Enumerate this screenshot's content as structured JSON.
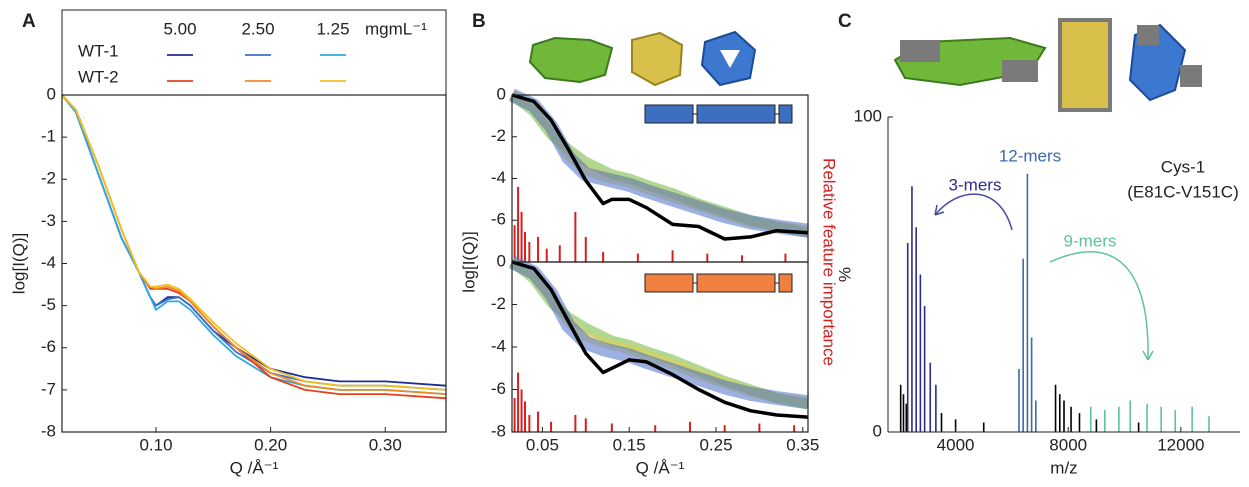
{
  "panel_labels": [
    "A",
    "B",
    "C"
  ],
  "chart_data": [
    {
      "type": "line",
      "xlabel": "Q /Å⁻¹",
      "ylabel": "log[I(Q)]",
      "legend_unit": "mgmL⁻¹",
      "x": [
        0.018,
        0.03,
        0.05,
        0.07,
        0.085,
        0.095,
        0.1,
        0.11,
        0.12,
        0.13,
        0.15,
        0.17,
        0.2,
        0.23,
        0.26,
        0.3,
        0.353
      ],
      "xlim": [
        0.018,
        0.353
      ],
      "xticks": [
        {
          "value": 0.1,
          "label": "0.10"
        },
        {
          "value": 0.2,
          "label": "0.20"
        },
        {
          "value": 0.3,
          "label": "0.30"
        }
      ],
      "ylim": [
        -8,
        0
      ],
      "yticks": [
        0,
        -1,
        -2,
        -3,
        -4,
        -5,
        -6,
        -7,
        -8
      ],
      "series": [
        {
          "group": "WT-1",
          "name": "5.00",
          "color": "#1f2f8f",
          "values": [
            0,
            -0.4,
            -1.9,
            -3.4,
            -4.2,
            -4.8,
            -5.0,
            -4.8,
            -4.8,
            -5.0,
            -5.6,
            -6.0,
            -6.5,
            -6.7,
            -6.8,
            -6.8,
            -6.9
          ]
        },
        {
          "group": "WT-1",
          "name": "2.50",
          "color": "#3f6fd0",
          "values": [
            0,
            -0.4,
            -1.9,
            -3.4,
            -4.2,
            -4.8,
            -5.0,
            -4.85,
            -4.8,
            -5.0,
            -5.6,
            -6.1,
            -6.6,
            -6.8,
            -6.9,
            -6.9,
            -7.0
          ]
        },
        {
          "group": "WT-1",
          "name": "1.25",
          "color": "#30a8e0",
          "values": [
            0,
            -0.4,
            -1.9,
            -3.4,
            -4.2,
            -4.8,
            -5.1,
            -4.9,
            -4.9,
            -5.1,
            -5.7,
            -6.2,
            -6.7,
            -6.9,
            -7.0,
            -7.0,
            -7.1
          ]
        },
        {
          "group": "WT-2",
          "name": "5.00",
          "color": "#e8401c",
          "values": [
            0,
            -0.35,
            -1.7,
            -3.2,
            -4.2,
            -4.6,
            -4.6,
            -4.6,
            -4.7,
            -4.9,
            -5.5,
            -6.0,
            -6.7,
            -7.0,
            -7.1,
            -7.1,
            -7.2
          ]
        },
        {
          "group": "WT-2",
          "name": "2.50",
          "color": "#f08a24",
          "values": [
            0,
            -0.35,
            -1.7,
            -3.2,
            -4.2,
            -4.55,
            -4.6,
            -4.55,
            -4.65,
            -4.9,
            -5.5,
            -6.0,
            -6.6,
            -6.9,
            -7.0,
            -7.0,
            -7.1
          ]
        },
        {
          "group": "WT-2",
          "name": "1.25",
          "color": "#f0c020",
          "values": [
            0,
            -0.35,
            -1.7,
            -3.2,
            -4.2,
            -4.55,
            -4.55,
            -4.5,
            -4.6,
            -4.85,
            -5.4,
            -5.9,
            -6.5,
            -6.8,
            -6.9,
            -6.9,
            -7.0
          ]
        }
      ]
    },
    {
      "type": "line",
      "ylabel": "log[I(Q)]",
      "y2label": "Relative feature importance",
      "x": [
        0.015,
        0.04,
        0.06,
        0.08,
        0.1,
        0.12,
        0.13,
        0.15,
        0.17,
        0.2,
        0.23,
        0.26,
        0.29,
        0.32,
        0.356
      ],
      "xlim": [
        0.015,
        0.356
      ],
      "ylim": [
        -8,
        0
      ],
      "yticks": [
        0,
        -2,
        -4,
        -6
      ],
      "y2lim": [
        0,
        1
      ],
      "series": [
        {
          "color": "#6fb83a",
          "values": [
            0,
            -0.8,
            -1.9,
            -2.6,
            -3.2,
            -3.6,
            -3.8,
            -4.0,
            -4.3,
            -4.7,
            -5.2,
            -5.6,
            -6.0,
            -6.3,
            -6.6
          ]
        },
        {
          "color": "#e6cd4a",
          "values": [
            0,
            -0.6,
            -1.7,
            -2.9,
            -3.6,
            -3.9,
            -4.0,
            -4.2,
            -4.5,
            -4.9,
            -5.3,
            -5.7,
            -6.1,
            -6.3,
            -6.5
          ]
        },
        {
          "color": "#4a70c8",
          "values": [
            0,
            -0.5,
            -1.5,
            -3.0,
            -3.8,
            -4.0,
            -4.1,
            -4.3,
            -4.6,
            -5.0,
            -5.4,
            -5.8,
            -6.1,
            -6.3,
            -6.5
          ]
        },
        {
          "color": "#000000",
          "values": [
            0,
            -0.3,
            -1.2,
            -2.6,
            -4.1,
            -5.2,
            -5.0,
            -5.0,
            -5.4,
            -6.2,
            -6.3,
            -6.9,
            -6.8,
            -6.5,
            -6.6
          ]
        },
        {
          "style": "bar",
          "axis": "y2",
          "color": "#d42020",
          "x": [
            0.018,
            0.022,
            0.026,
            0.03,
            0.035,
            0.045,
            0.055,
            0.07,
            0.088,
            0.1,
            0.12,
            0.16,
            0.2,
            0.24,
            0.28,
            0.33
          ],
          "values": [
            0.22,
            0.45,
            0.3,
            0.18,
            0.12,
            0.15,
            0.08,
            0.1,
            0.3,
            0.15,
            0.06,
            0.05,
            0.07,
            0.05,
            0.04,
            0.05
          ]
        }
      ]
    },
    {
      "type": "line",
      "xlabel": "Q /Å⁻¹",
      "x": [
        0.015,
        0.04,
        0.06,
        0.08,
        0.1,
        0.12,
        0.13,
        0.15,
        0.17,
        0.2,
        0.23,
        0.26,
        0.29,
        0.32,
        0.356
      ],
      "xlim": [
        0.015,
        0.356
      ],
      "xticks": [
        {
          "value": 0.05,
          "label": "0.05"
        },
        {
          "value": 0.15,
          "label": "0.15"
        },
        {
          "value": 0.25,
          "label": "0.25"
        },
        {
          "value": 0.35,
          "label": "0.35"
        }
      ],
      "ylim": [
        -8,
        0
      ],
      "yticks": [
        0,
        -2,
        -4,
        -6,
        -8
      ],
      "y2lim": [
        0,
        1
      ],
      "series": [
        {
          "color": "#6fb83a",
          "values": [
            0,
            -0.8,
            -1.9,
            -2.6,
            -3.1,
            -3.5,
            -3.7,
            -3.9,
            -4.2,
            -4.6,
            -5.1,
            -5.6,
            -6.0,
            -6.4,
            -6.7
          ]
        },
        {
          "color": "#e6cd4a",
          "values": [
            0,
            -0.6,
            -1.7,
            -2.8,
            -3.5,
            -3.8,
            -3.9,
            -4.1,
            -4.4,
            -4.8,
            -5.3,
            -5.7,
            -6.1,
            -6.4,
            -6.6
          ]
        },
        {
          "color": "#4a70c8",
          "values": [
            0,
            -0.5,
            -1.5,
            -3.0,
            -3.8,
            -4.1,
            -4.2,
            -4.4,
            -4.7,
            -5.1,
            -5.5,
            -5.9,
            -6.2,
            -6.4,
            -6.6
          ]
        },
        {
          "color": "#000000",
          "values": [
            0,
            -0.3,
            -1.3,
            -2.8,
            -4.3,
            -5.2,
            -5.0,
            -4.6,
            -4.7,
            -5.3,
            -6.0,
            -6.6,
            -7.0,
            -7.2,
            -7.3
          ]
        },
        {
          "style": "bar",
          "axis": "y2",
          "color": "#d42020",
          "x": [
            0.018,
            0.022,
            0.026,
            0.03,
            0.035,
            0.045,
            0.06,
            0.088,
            0.1,
            0.13,
            0.18,
            0.22,
            0.26,
            0.3,
            0.34
          ],
          "values": [
            0.2,
            0.35,
            0.25,
            0.18,
            0.1,
            0.12,
            0.06,
            0.1,
            0.08,
            0.05,
            0.04,
            0.06,
            0.04,
            0.05,
            0.04
          ]
        }
      ]
    },
    {
      "type": "stick",
      "xlabel": "m/z",
      "ylabel": "%",
      "annotations": [
        "Cys-1",
        "(E81C-V151C)"
      ],
      "xlim": [
        1600,
        14100
      ],
      "xticks": [
        4000,
        8000,
        12000
      ],
      "ylim": [
        0,
        100
      ],
      "yticks": [
        0,
        100
      ],
      "series": [
        {
          "color": "#000000",
          "x": [
            2050,
            2150,
            2250,
            3500,
            4000,
            5000,
            7550,
            7700,
            7850,
            8100,
            8400,
            9000,
            10500
          ],
          "values": [
            15,
            12,
            9,
            6,
            4,
            3,
            15,
            12,
            10,
            8,
            6,
            4,
            3
          ]
        },
        {
          "name": "3-mers",
          "color": "#2e2d8c",
          "x": [
            2300,
            2450,
            2600,
            2750,
            2900,
            3100,
            3300
          ],
          "values": [
            60,
            78,
            65,
            50,
            40,
            22,
            15
          ]
        },
        {
          "name": "12-mers",
          "color": "#3d6aa8",
          "x": [
            6250,
            6400,
            6550,
            6700,
            6850
          ],
          "values": [
            20,
            55,
            82,
            30,
            10
          ]
        },
        {
          "name": "9-mers",
          "color": "#5cc49a",
          "x": [
            8800,
            9300,
            9800,
            10200,
            10800,
            11300,
            11800,
            12400,
            13000
          ],
          "values": [
            8,
            7,
            8,
            10,
            9,
            8,
            7,
            8,
            5
          ]
        }
      ]
    }
  ]
}
